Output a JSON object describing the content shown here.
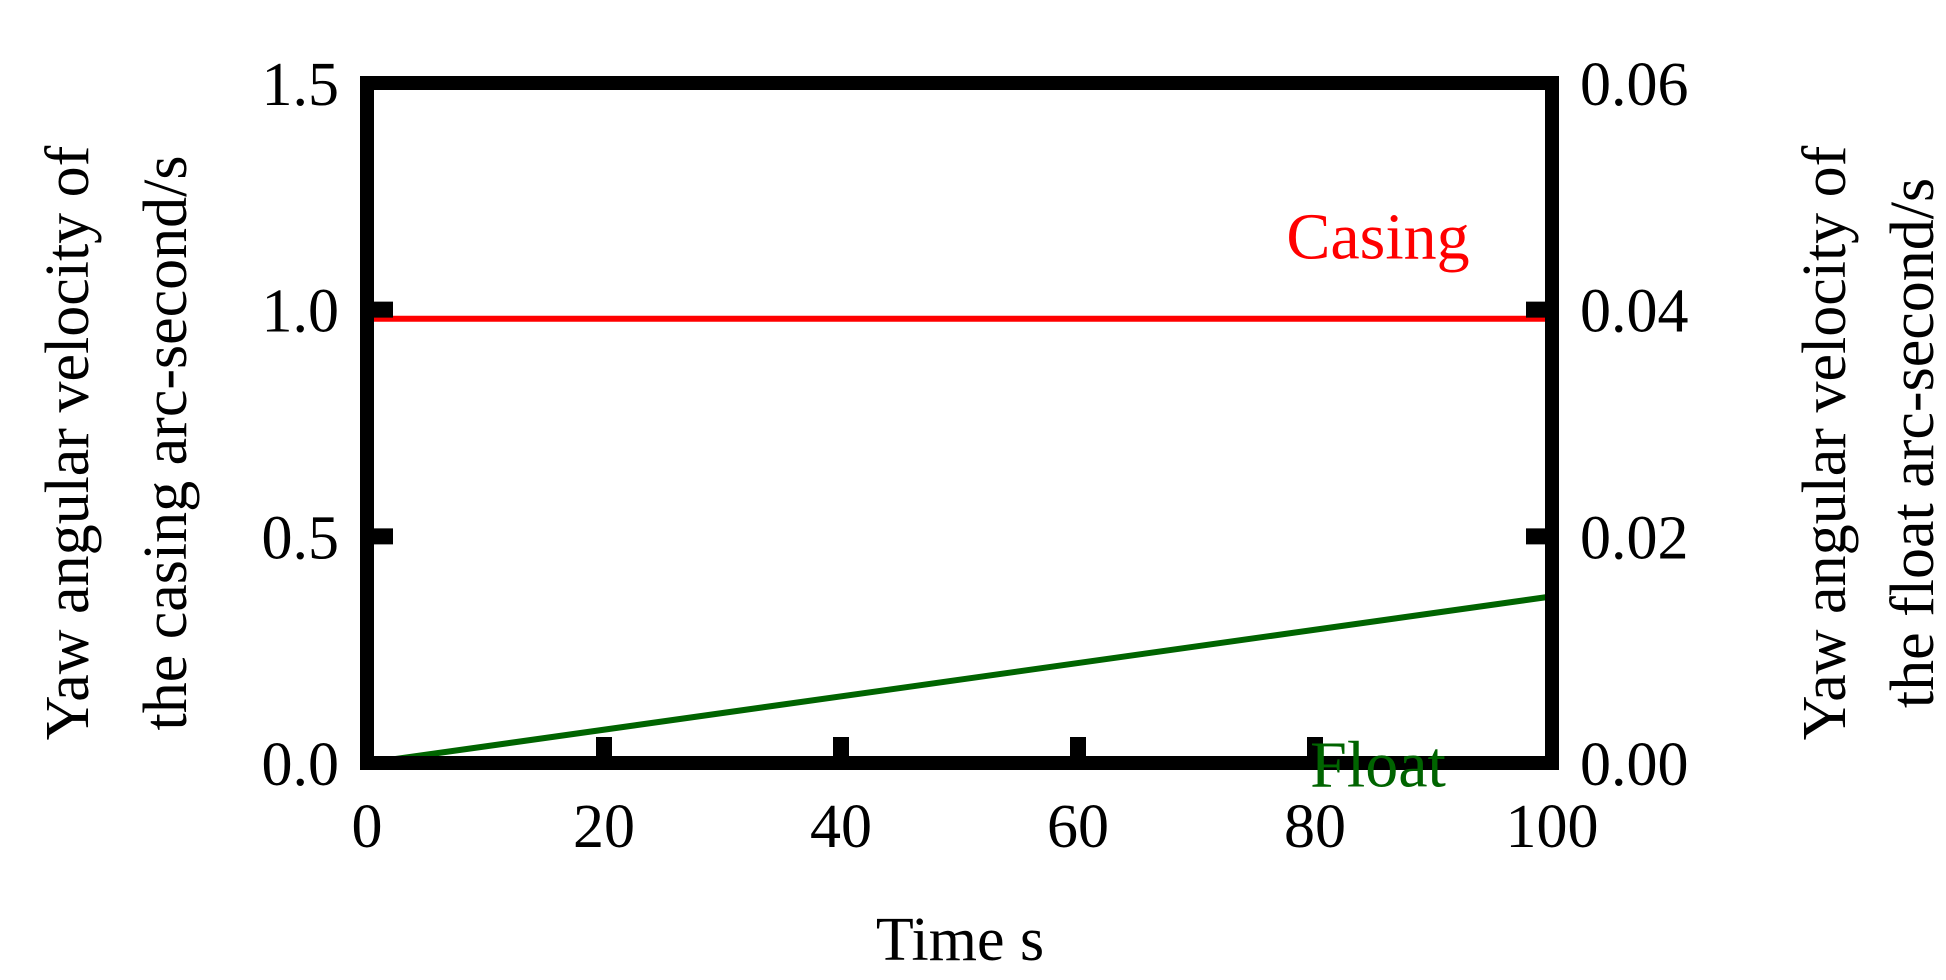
{
  "chart_data": {
    "type": "line",
    "title": "",
    "xlabel": "Time s",
    "ylabel_left": [
      "Yaw angular velocity of",
      "the casing arc-second/s"
    ],
    "ylabel_right": [
      "Yaw angular velocity of",
      "the float arc-second/s"
    ],
    "xlim": [
      0,
      100
    ],
    "ylim_left": [
      0,
      1.5
    ],
    "ylim_right": [
      0,
      0.06
    ],
    "xticks": [
      0,
      20,
      40,
      60,
      80,
      100
    ],
    "xtick_labels": [
      "0",
      "20",
      "40",
      "60",
      "80",
      "100"
    ],
    "yticks_left": [
      0,
      0.5,
      1.0,
      1.5
    ],
    "ytick_labels_left": [
      "0.0",
      "0.5",
      "1.0",
      "1.5"
    ],
    "yticks_right": [
      0,
      0.02,
      0.04,
      0.06
    ],
    "ytick_labels_right": [
      "0.00",
      "0.02",
      "0.04",
      "0.06"
    ],
    "grid": false,
    "series": [
      {
        "name": "Casing",
        "axis": "left",
        "color": "#ff0000",
        "x": [
          0,
          100
        ],
        "y": [
          0.98,
          0.98
        ]
      },
      {
        "name": "Float",
        "axis": "right",
        "color": "#006400",
        "x": [
          0,
          100
        ],
        "y": [
          0,
          0.0147
        ]
      }
    ]
  }
}
